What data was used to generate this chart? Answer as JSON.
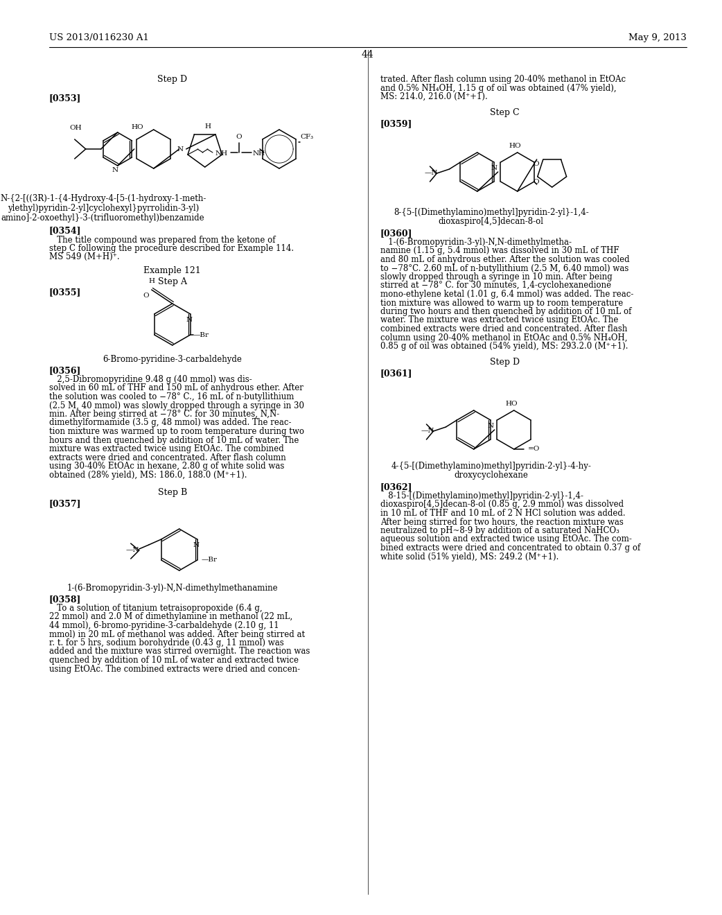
{
  "background_color": "#ffffff",
  "header_left": "US 2013/0116230 A1",
  "header_right": "May 9, 2013",
  "page_number": "44"
}
